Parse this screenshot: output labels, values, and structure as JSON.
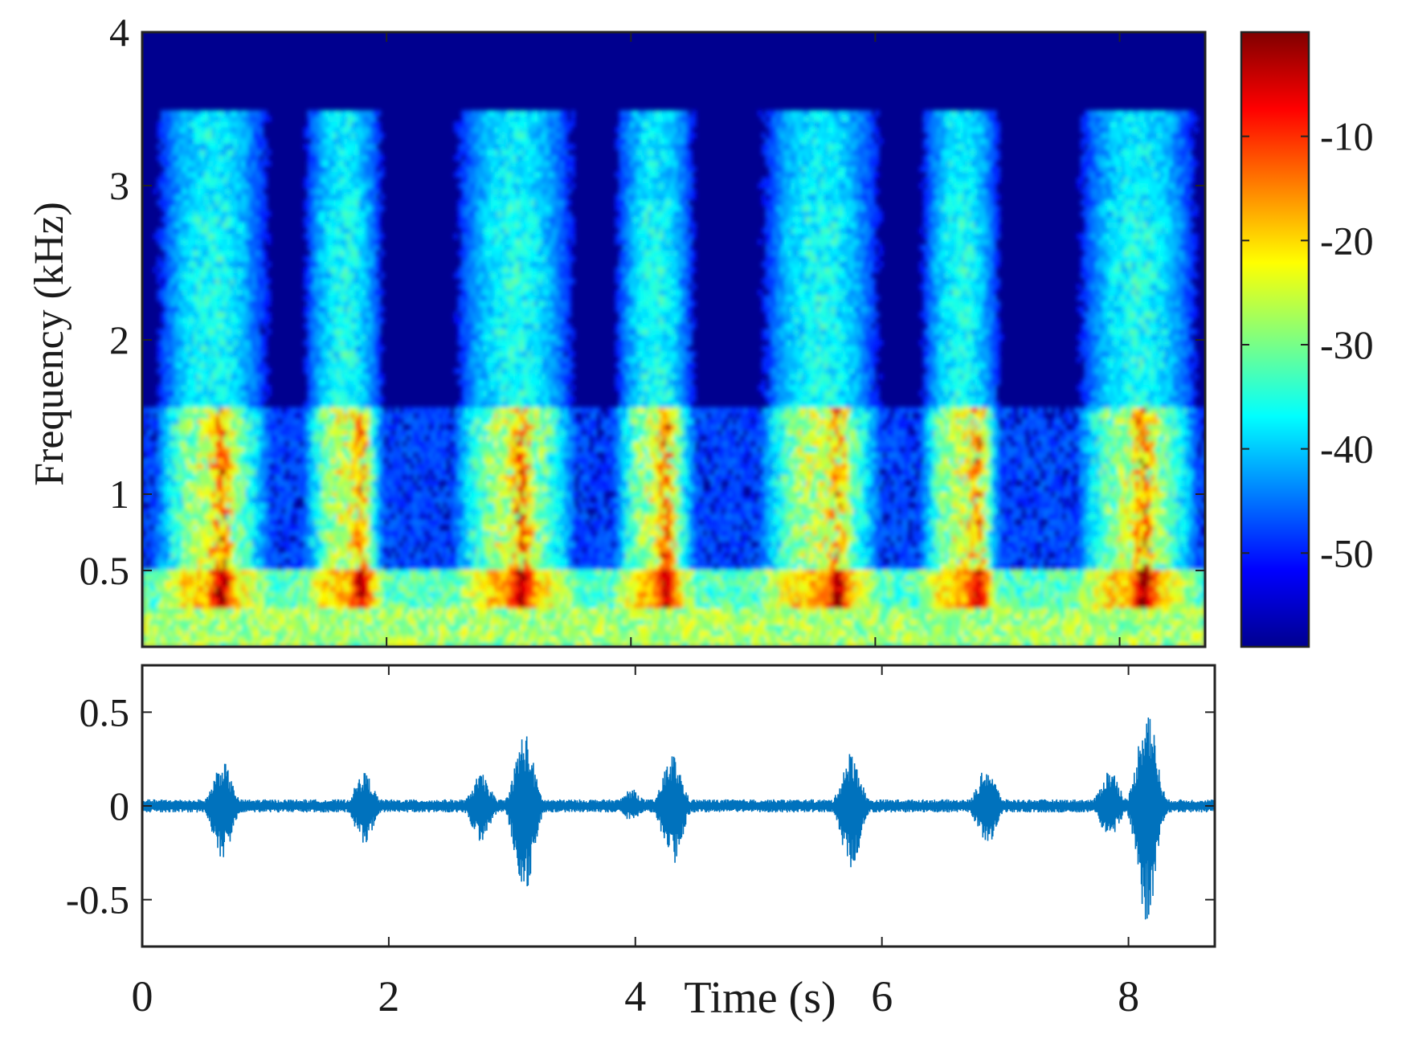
{
  "chart_data": [
    {
      "type": "heatmap",
      "title": "",
      "xlabel": "",
      "ylabel": "Frequency (kHz)",
      "xlim": [
        0,
        8.7
      ],
      "ylim": [
        0,
        4
      ],
      "y_ticks": [
        0.5,
        1,
        2,
        3,
        4
      ],
      "y_tick_labels": [
        "0.5",
        "1",
        "2",
        "3",
        "4"
      ],
      "x_ticks": [
        0,
        2,
        4,
        6,
        8
      ],
      "colormap": "jet",
      "colorbar": {
        "ticks": [
          -10,
          -20,
          -30,
          -40,
          -50
        ],
        "tick_labels": [
          "-10",
          "-20",
          "-30",
          "-40",
          "-50"
        ],
        "range": [
          -59,
          0
        ]
      },
      "background_color": "#00008f",
      "events": [
        {
          "t_start": 0.15,
          "t_end": 1.0,
          "peak_t": 0.65,
          "peak_khz": 1.25
        },
        {
          "t_start": 1.35,
          "t_end": 1.95,
          "peak_t": 1.8,
          "peak_khz": 1.2
        },
        {
          "t_start": 2.6,
          "t_end": 3.5,
          "peak_t": 3.1,
          "peak_khz": 1.2
        },
        {
          "t_start": 3.9,
          "t_end": 4.5,
          "peak_t": 4.3,
          "peak_khz": 1.25
        },
        {
          "t_start": 5.1,
          "t_end": 6.0,
          "peak_t": 5.7,
          "peak_khz": 1.2
        },
        {
          "t_start": 6.4,
          "t_end": 7.0,
          "peak_t": 6.85,
          "peak_khz": 1.2
        },
        {
          "t_start": 7.7,
          "t_end": 8.6,
          "peak_t": 8.2,
          "peak_khz": 1.25
        }
      ]
    },
    {
      "type": "line",
      "title": "",
      "xlabel": "Time (s)",
      "ylabel": "",
      "xlim": [
        0,
        8.7
      ],
      "ylim": [
        -0.75,
        0.75
      ],
      "x_ticks": [
        0,
        2,
        4,
        6,
        8
      ],
      "x_tick_labels": [
        "0",
        "2",
        "4",
        "6",
        "8"
      ],
      "y_ticks": [
        0.5,
        0,
        -0.5
      ],
      "y_tick_labels": [
        "0.5",
        "0",
        "-0.5"
      ],
      "line_color": "#0072BD",
      "envelope_peaks": [
        {
          "t": 0.65,
          "max": 0.24,
          "min": -0.3
        },
        {
          "t": 1.8,
          "max": 0.18,
          "min": -0.2
        },
        {
          "t": 2.75,
          "max": 0.17,
          "min": -0.2
        },
        {
          "t": 3.1,
          "max": 0.4,
          "min": -0.5
        },
        {
          "t": 3.97,
          "max": 0.09,
          "min": -0.08
        },
        {
          "t": 4.3,
          "max": 0.28,
          "min": -0.33
        },
        {
          "t": 5.75,
          "max": 0.29,
          "min": -0.34
        },
        {
          "t": 6.85,
          "max": 0.21,
          "min": -0.22
        },
        {
          "t": 7.85,
          "max": 0.2,
          "min": -0.18
        },
        {
          "t": 8.15,
          "max": 0.55,
          "min": -0.62
        }
      ]
    }
  ]
}
